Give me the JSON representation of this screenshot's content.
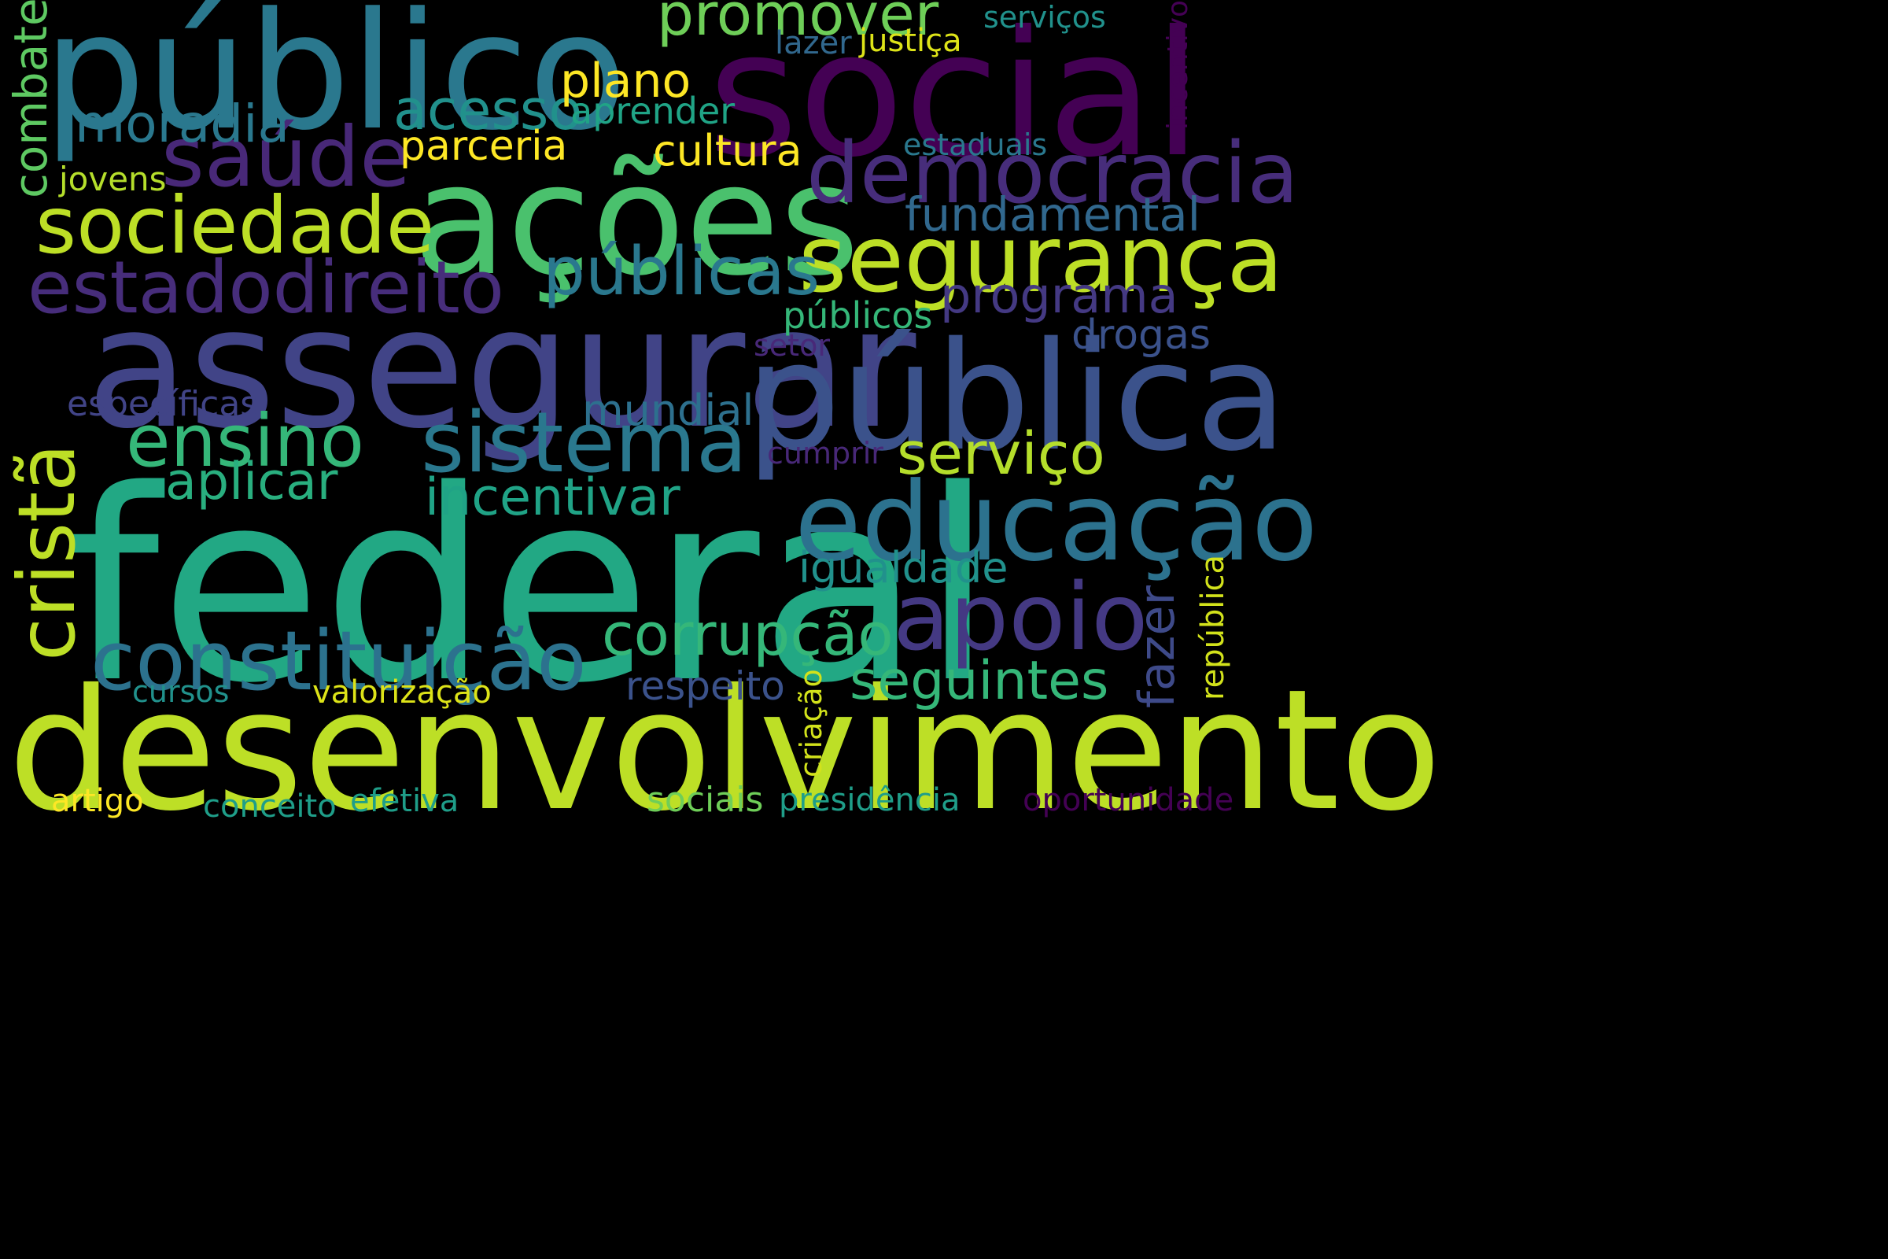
{
  "background": "#000000",
  "words": [
    {
      "id": "federal",
      "text": "federal",
      "color": "#22a884"
    },
    {
      "id": "desenvolvimento",
      "text": "desenvolvimento",
      "color": "#bddf26"
    },
    {
      "id": "assegurar",
      "text": "assegurar",
      "color": "#414487"
    },
    {
      "id": "social",
      "text": "social",
      "color": "#440154"
    },
    {
      "id": "publico",
      "text": "público",
      "color": "#2a788e"
    },
    {
      "id": "acoes",
      "text": "ações",
      "color": "#4ac16d"
    },
    {
      "id": "publica",
      "text": "pública",
      "color": "#3b528b"
    },
    {
      "id": "educacao",
      "text": "educação",
      "color": "#2c728e"
    },
    {
      "id": "seguranca",
      "text": "segurança",
      "color": "#bddf26"
    },
    {
      "id": "democracia",
      "text": "democracia",
      "color": "#472d7b"
    },
    {
      "id": "constituicao",
      "text": "constituição",
      "color": "#2c728e"
    },
    {
      "id": "sociedade",
      "text": "sociedade",
      "color": "#bddf26"
    },
    {
      "id": "saude",
      "text": "saúde",
      "color": "#482878"
    },
    {
      "id": "estadodireito",
      "text": "estadodireito",
      "color": "#472d7b"
    },
    {
      "id": "sistema",
      "text": "sistema",
      "color": "#2a788e"
    },
    {
      "id": "apoio",
      "text": "apoio",
      "color": "#443983"
    },
    {
      "id": "crista",
      "text": "cristã",
      "color": "#bddf26"
    },
    {
      "id": "ensino",
      "text": "ensino",
      "color": "#35b779"
    },
    {
      "id": "publicas",
      "text": "públicas",
      "color": "#2a788e"
    },
    {
      "id": "servico",
      "text": "serviço",
      "color": "#b5de2b"
    },
    {
      "id": "corrupcao",
      "text": "corrupção",
      "color": "#35b779"
    },
    {
      "id": "seguintes",
      "text": "seguintes",
      "color": "#35b779"
    },
    {
      "id": "promover",
      "text": "promover",
      "color": "#6ece58"
    },
    {
      "id": "fundamental",
      "text": "fundamental",
      "color": "#31688e"
    },
    {
      "id": "acesso",
      "text": "acesso",
      "color": "#21918c"
    },
    {
      "id": "moradia",
      "text": "moradia",
      "color": "#2a788e"
    },
    {
      "id": "plano",
      "text": "plano",
      "color": "#fde725"
    },
    {
      "id": "incentivar",
      "text": "incentivar",
      "color": "#20a386"
    },
    {
      "id": "aplicar",
      "text": "aplicar",
      "color": "#29af7f"
    },
    {
      "id": "programa",
      "text": "programa",
      "color": "#443983"
    },
    {
      "id": "igualdade",
      "text": "igualdade",
      "color": "#21918c"
    },
    {
      "id": "fazer",
      "text": "fazer",
      "color": "#3e4a89"
    },
    {
      "id": "combate",
      "text": "combate",
      "color": "#5ec962"
    },
    {
      "id": "cultura",
      "text": "cultura",
      "color": "#fde725"
    },
    {
      "id": "parceria",
      "text": "parceria",
      "color": "#fde725"
    },
    {
      "id": "mundial",
      "text": "mundial",
      "color": "#2d708e"
    },
    {
      "id": "respeito",
      "text": "respeito",
      "color": "#3b528b"
    },
    {
      "id": "drogas",
      "text": "drogas",
      "color": "#3b528b"
    },
    {
      "id": "aprender",
      "text": "aprender",
      "color": "#20a486"
    },
    {
      "id": "publicos",
      "text": "públicos",
      "color": "#35b779"
    },
    {
      "id": "jovens",
      "text": "jovens",
      "color": "#b5de2b"
    },
    {
      "id": "especificas",
      "text": "específicas",
      "color": "#414487"
    },
    {
      "id": "valorizacao",
      "text": "valorização",
      "color": "#dde318"
    },
    {
      "id": "sociais",
      "text": "sociais",
      "color": "#6ece58"
    },
    {
      "id": "presidencia",
      "text": "presidência",
      "color": "#1f9e89"
    },
    {
      "id": "oportunidade",
      "text": "oportunidade",
      "color": "#440154"
    },
    {
      "id": "republica",
      "text": "república",
      "color": "#d2e21b"
    },
    {
      "id": "criacao",
      "text": "criação",
      "color": "#d2e21b"
    },
    {
      "id": "conceito",
      "text": "conceito",
      "color": "#1f9e89"
    },
    {
      "id": "efetiva",
      "text": "efetiva",
      "color": "#1f9e89"
    },
    {
      "id": "artigo",
      "text": "artigo",
      "color": "#fde725"
    },
    {
      "id": "cursos",
      "text": "cursos",
      "color": "#21918c"
    },
    {
      "id": "servicos",
      "text": "serviços",
      "color": "#21918c"
    },
    {
      "id": "lazer",
      "text": "lazer",
      "color": "#31688e"
    },
    {
      "id": "justica",
      "text": "justiça",
      "color": "#dde318"
    },
    {
      "id": "estaduais",
      "text": "estaduais",
      "color": "#2a788e"
    },
    {
      "id": "incentivo",
      "text": "incentivo",
      "color": "#440154"
    },
    {
      "id": "setor",
      "text": "setor",
      "color": "#482878"
    },
    {
      "id": "cumprir",
      "text": "cumprir",
      "color": "#482878"
    }
  ]
}
